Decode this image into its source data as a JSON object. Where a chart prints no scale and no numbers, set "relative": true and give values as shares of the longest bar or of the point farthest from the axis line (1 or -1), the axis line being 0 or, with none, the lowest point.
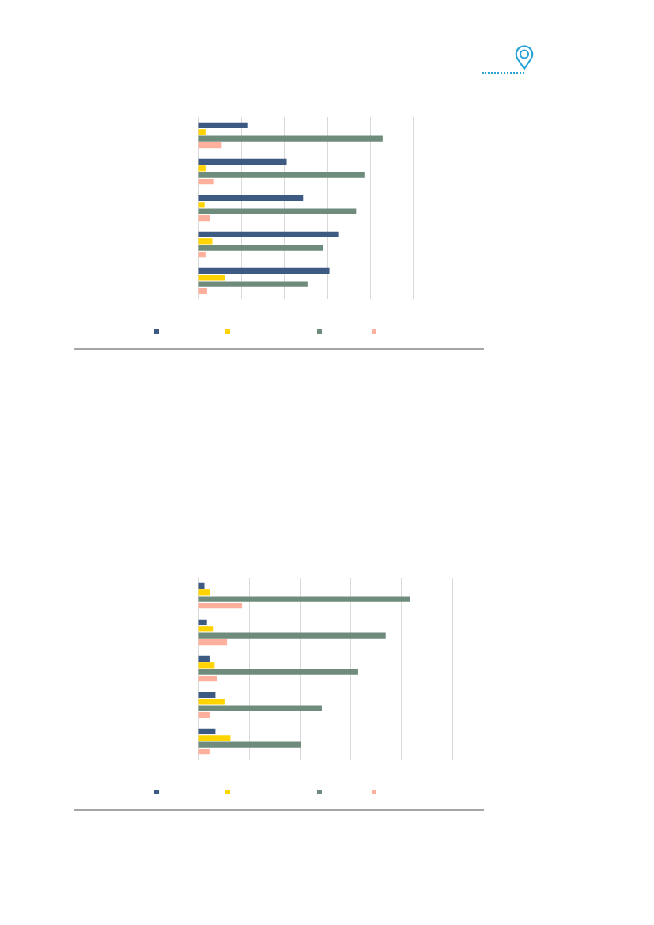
{
  "chart_data": [
    {
      "type": "bar",
      "orientation": "horizontal",
      "relative": true,
      "categories": [
        null,
        null,
        null,
        null,
        null
      ],
      "series": [
        {
          "color": "#3c5a82",
          "values": [
            0.265,
            0.479,
            0.568,
            0.763,
            0.711
          ]
        },
        {
          "color": "#ffd400",
          "values": [
            0.038,
            0.038,
            0.033,
            0.075,
            0.144
          ]
        },
        {
          "color": "#6e8b7c",
          "values": [
            1,
            0.901,
            0.856,
            0.675,
            0.592
          ]
        },
        {
          "color": "#ffb09c",
          "values": [
            0.126,
            0.08,
            0.061,
            0.038,
            0.047
          ]
        }
      ],
      "grid": "x"
    },
    {
      "type": "bar",
      "orientation": "horizontal",
      "relative": true,
      "categories": [
        null,
        null,
        null,
        null,
        null
      ],
      "series": [
        {
          "color": "#3c5a82",
          "values": [
            0.028,
            0.04,
            0.052,
            0.08,
            0.08
          ]
        },
        {
          "color": "#ffd400",
          "values": [
            0.056,
            0.068,
            0.076,
            0.123,
            0.151
          ]
        },
        {
          "color": "#6e8b7c",
          "values": [
            1,
            0.885,
            0.755,
            0.583,
            0.485
          ]
        },
        {
          "color": "#ffb09c",
          "values": [
            0.206,
            0.135,
            0.088,
            0.052,
            0.052
          ]
        }
      ],
      "grid": "x"
    }
  ]
}
